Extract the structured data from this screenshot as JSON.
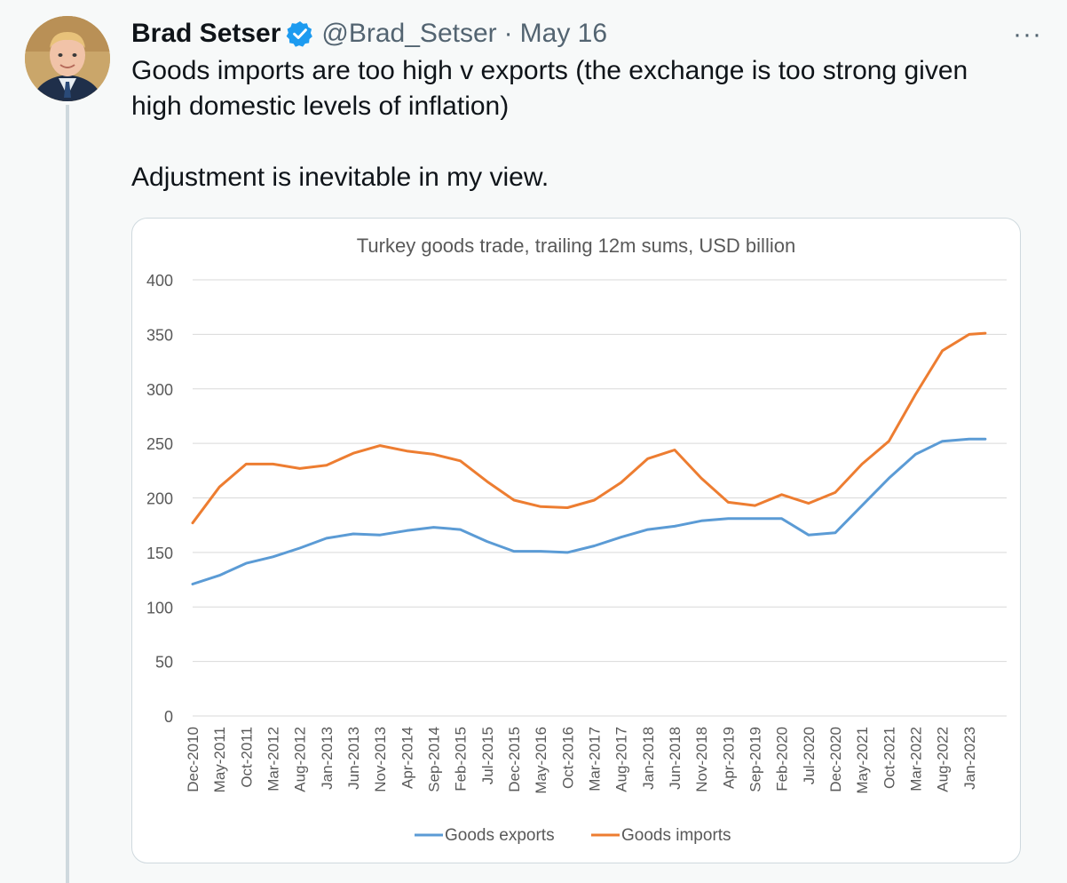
{
  "tweet": {
    "author_name": "Brad Setser",
    "handle": "@Brad_Setser",
    "separator": "·",
    "date": "May 16",
    "more_label": "···",
    "text_line1": "Goods imports are too high v exports (the exchange is too strong given",
    "text_line2": "high domestic levels of inflation)",
    "text_line3": "Adjustment is inevitable in my view."
  },
  "colors": {
    "exports": "#5b9bd5",
    "imports": "#ed7d31",
    "verified": "#1d9bf0"
  },
  "chart_data": {
    "type": "line",
    "title": "Turkey goods trade, trailing 12m sums, USD billion",
    "xlabel": "",
    "ylabel": "",
    "ylim": [
      0,
      400
    ],
    "yticks": [
      0,
      50,
      100,
      150,
      200,
      250,
      300,
      350,
      400
    ],
    "grid": true,
    "legend_position": "bottom",
    "x_tick_labels": [
      "Dec-2010",
      "May-2011",
      "Oct-2011",
      "Mar-2012",
      "Aug-2012",
      "Jan-2013",
      "Jun-2013",
      "Nov-2013",
      "Apr-2014",
      "Sep-2014",
      "Feb-2015",
      "Jul-2015",
      "Dec-2015",
      "May-2016",
      "Oct-2016",
      "Mar-2017",
      "Aug-2017",
      "Jan-2018",
      "Jun-2018",
      "Nov-2018",
      "Apr-2019",
      "Sep-2019",
      "Feb-2020",
      "Jul-2020",
      "Dec-2020",
      "May-2021",
      "Oct-2021",
      "Mar-2022",
      "Aug-2022",
      "Jan-2023"
    ],
    "x_points": [
      0,
      5,
      10,
      15,
      20,
      25,
      30,
      35,
      40,
      45,
      50,
      55,
      60,
      65,
      70,
      75,
      80,
      85,
      90,
      95,
      100,
      105,
      110,
      115,
      120,
      125,
      130,
      135,
      140,
      145,
      148
    ],
    "series": [
      {
        "name": "Goods exports",
        "values": [
          121,
          129,
          140,
          146,
          154,
          163,
          167,
          166,
          170,
          173,
          171,
          160,
          151,
          151,
          150,
          156,
          164,
          171,
          174,
          179,
          181,
          181,
          181,
          166,
          168,
          193,
          218,
          240,
          252,
          254,
          254
        ]
      },
      {
        "name": "Goods imports",
        "values": [
          177,
          210,
          231,
          231,
          227,
          230,
          241,
          248,
          243,
          240,
          234,
          215,
          198,
          192,
          191,
          198,
          214,
          236,
          244,
          218,
          196,
          193,
          203,
          195,
          205,
          231,
          252,
          295,
          335,
          350,
          351
        ]
      }
    ]
  }
}
